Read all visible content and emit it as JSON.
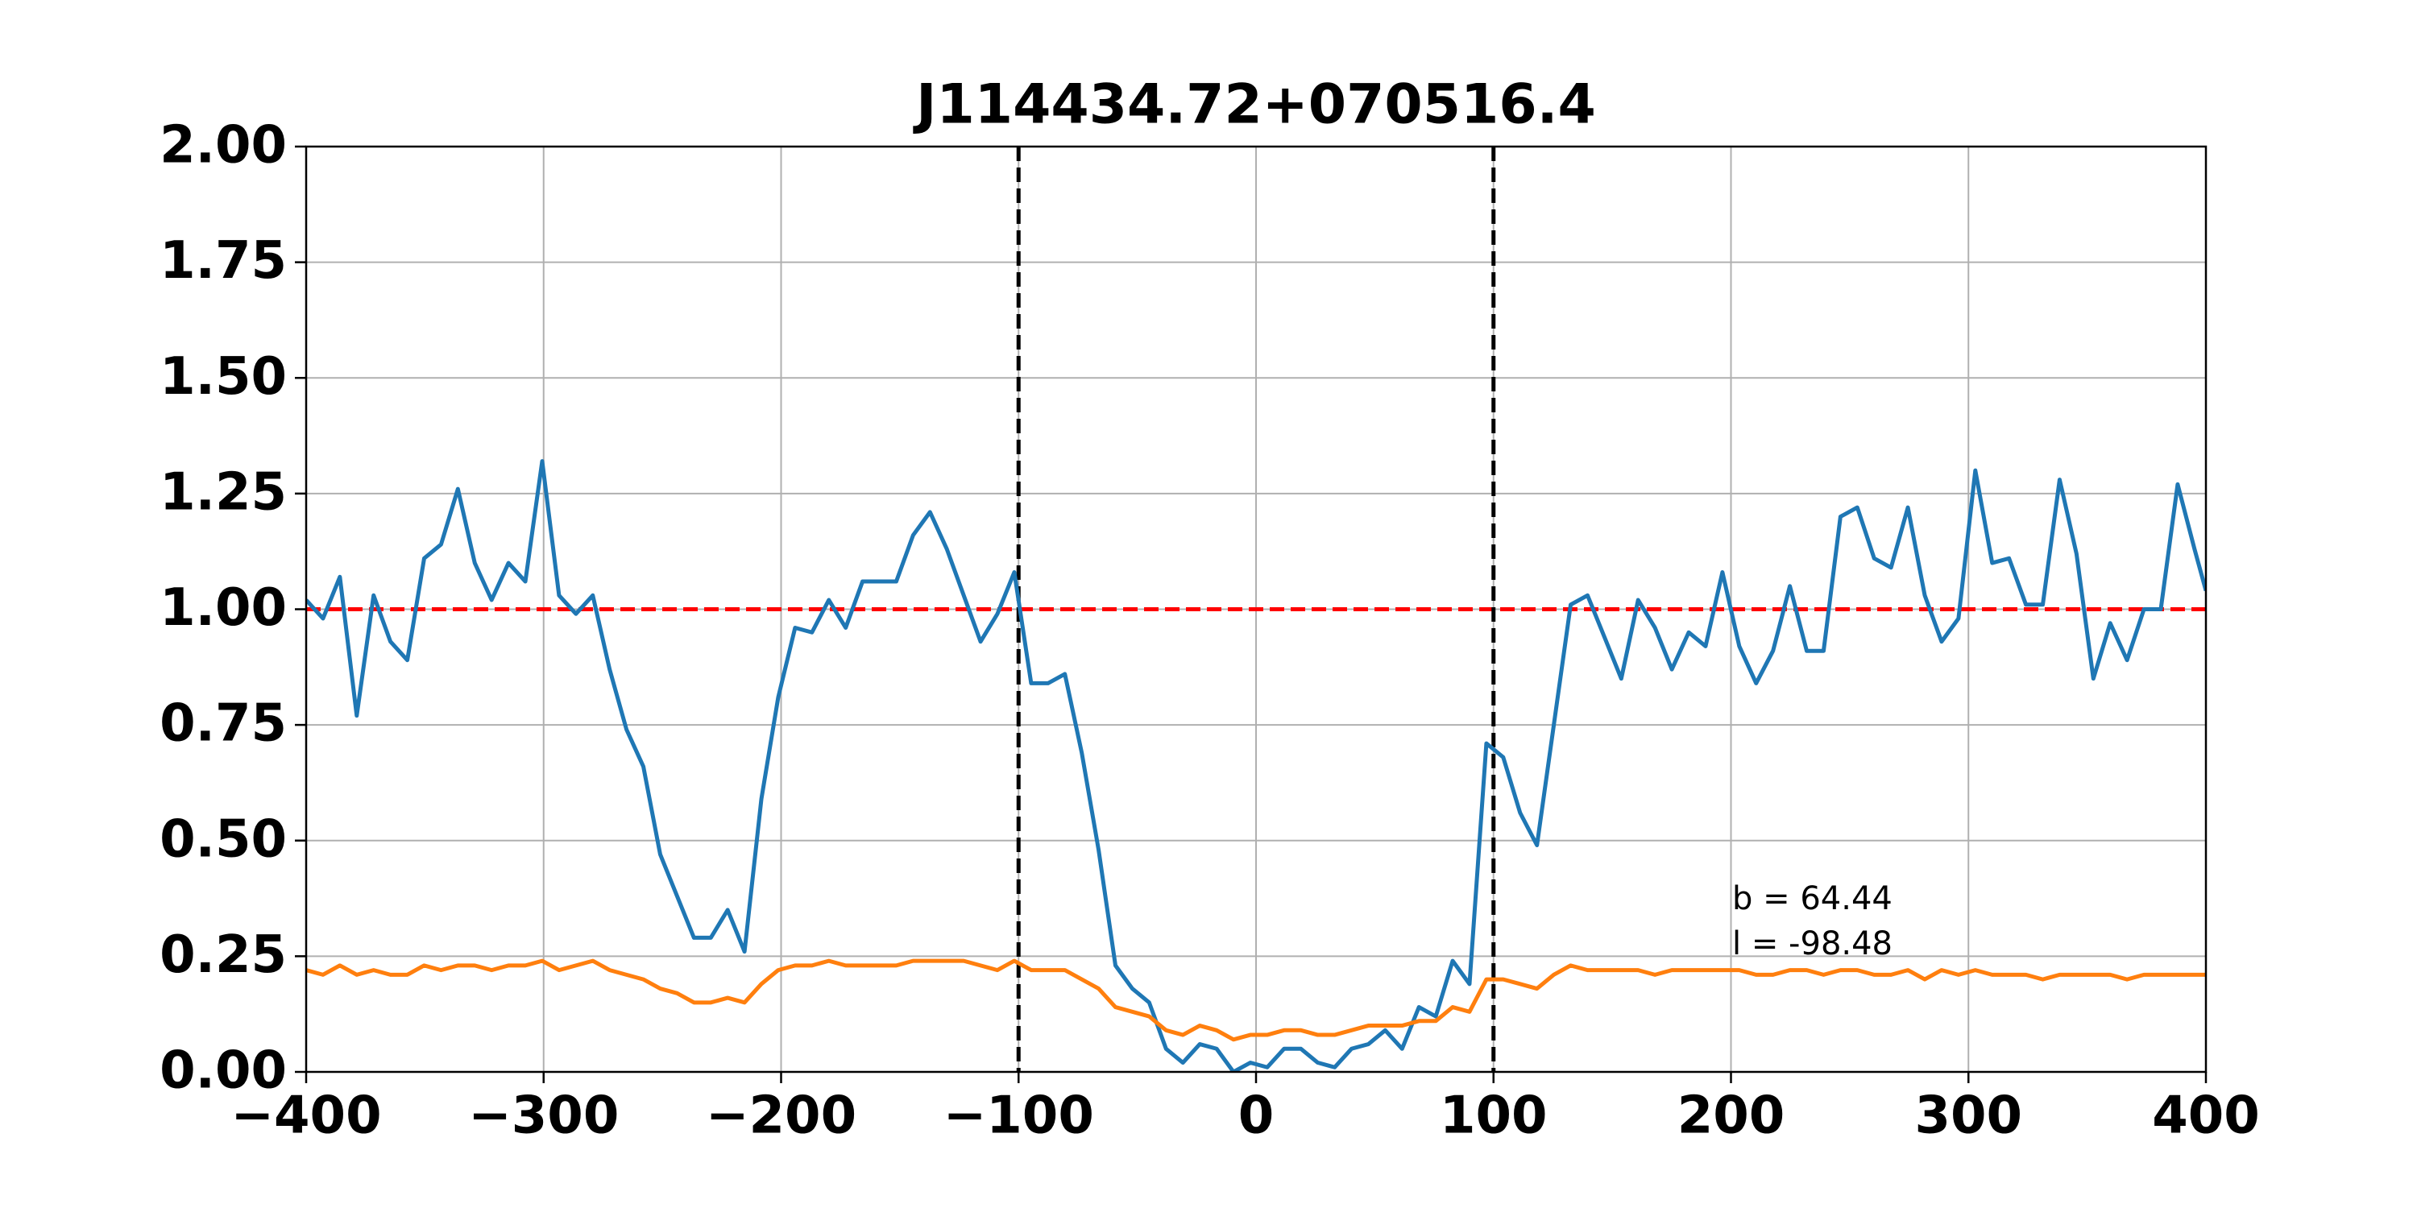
{
  "chart_data": {
    "type": "line",
    "title": "J114434.72+070516.4",
    "x": [
      -400,
      -392.9,
      -385.8,
      -378.7,
      -371.6,
      -364.5,
      -357.4,
      -350.3,
      -343.2,
      -336.1,
      -329,
      -321.9,
      -314.8,
      -307.7,
      -300.6,
      -293.5,
      -286.4,
      -279.3,
      -272.2,
      -265.1,
      -258,
      -250.9,
      -243.8,
      -236.7,
      -229.6,
      -222.5,
      -215.4,
      -208.3,
      -201.2,
      -194.1,
      -187,
      -179.9,
      -172.8,
      -165.7,
      -158.6,
      -151.5,
      -144.4,
      -137.3,
      -130.2,
      -123.1,
      -116,
      -108.9,
      -101.8,
      -94.7,
      -87.6,
      -80.5,
      -73.4,
      -66.3,
      -59.2,
      -52.1,
      -45,
      -37.9,
      -30.8,
      -23.7,
      -16.6,
      -9.5,
      -2.4,
      4.7,
      11.8,
      18.9,
      26,
      33.1,
      40.2,
      47.3,
      54.4,
      61.5,
      68.6,
      75.7,
      82.8,
      89.9,
      97,
      104.1,
      111.2,
      118.3,
      125.4,
      132.5,
      139.6,
      146.7,
      153.8,
      160.9,
      168,
      175.1,
      182.2,
      189.3,
      196.4,
      203.5,
      210.6,
      217.7,
      224.8,
      231.9,
      239,
      246.1,
      253.2,
      260.3,
      267.4,
      274.5,
      281.6,
      288.7,
      295.8,
      302.9,
      310,
      317.1,
      324.2,
      331.3,
      338.4,
      345.5,
      352.6,
      359.7,
      366.8,
      373.9,
      381,
      388.1,
      395.2,
      400
    ],
    "series": [
      {
        "color": "#1f77b4",
        "values": [
          1.02,
          0.98,
          1.07,
          0.77,
          1.03,
          0.93,
          0.89,
          1.11,
          1.14,
          1.26,
          1.1,
          1.02,
          1.1,
          1.06,
          1.32,
          1.03,
          0.99,
          1.03,
          0.87,
          0.74,
          0.66,
          0.47,
          0.38,
          0.29,
          0.29,
          0.35,
          0.26,
          0.59,
          0.81,
          0.96,
          0.95,
          1.02,
          0.96,
          1.06,
          1.06,
          1.06,
          1.16,
          1.21,
          1.13,
          1.03,
          0.93,
          0.99,
          1.08,
          0.84,
          0.84,
          0.86,
          0.69,
          0.48,
          0.23,
          0.18,
          0.15,
          0.05,
          0.02,
          0.06,
          0.05,
          0.0,
          0.02,
          0.01,
          0.05,
          0.05,
          0.02,
          0.01,
          0.05,
          0.06,
          0.09,
          0.05,
          0.14,
          0.12,
          0.24,
          0.19,
          0.71,
          0.68,
          0.56,
          0.49,
          0.75,
          1.01,
          1.03,
          0.94,
          0.85,
          1.02,
          0.96,
          0.87,
          0.95,
          0.92,
          1.08,
          0.92,
          0.84,
          0.91,
          1.05,
          0.91,
          0.91,
          1.2,
          1.22,
          1.11,
          1.09,
          1.22,
          1.03,
          0.93,
          0.98,
          1.3,
          1.1,
          1.11,
          1.01,
          1.01,
          1.28,
          1.12,
          0.85,
          0.97,
          0.89,
          1.0,
          1.0,
          1.27,
          1.13,
          1.04
        ]
      },
      {
        "color": "#ff7f0e",
        "values": [
          0.22,
          0.21,
          0.23,
          0.21,
          0.22,
          0.21,
          0.21,
          0.23,
          0.22,
          0.23,
          0.23,
          0.22,
          0.23,
          0.23,
          0.24,
          0.22,
          0.23,
          0.24,
          0.22,
          0.21,
          0.2,
          0.18,
          0.17,
          0.15,
          0.15,
          0.16,
          0.15,
          0.19,
          0.22,
          0.23,
          0.23,
          0.24,
          0.23,
          0.23,
          0.23,
          0.23,
          0.24,
          0.24,
          0.24,
          0.24,
          0.23,
          0.22,
          0.24,
          0.22,
          0.22,
          0.22,
          0.2,
          0.18,
          0.14,
          0.13,
          0.12,
          0.09,
          0.08,
          0.1,
          0.09,
          0.07,
          0.08,
          0.08,
          0.09,
          0.09,
          0.08,
          0.08,
          0.09,
          0.1,
          0.1,
          0.1,
          0.11,
          0.11,
          0.14,
          0.13,
          0.2,
          0.2,
          0.19,
          0.18,
          0.21,
          0.23,
          0.22,
          0.22,
          0.22,
          0.22,
          0.21,
          0.22,
          0.22,
          0.22,
          0.22,
          0.22,
          0.21,
          0.21,
          0.22,
          0.22,
          0.21,
          0.22,
          0.22,
          0.21,
          0.21,
          0.22,
          0.2,
          0.22,
          0.21,
          0.22,
          0.21,
          0.21,
          0.21,
          0.2,
          0.21,
          0.21,
          0.21,
          0.21,
          0.2,
          0.21,
          0.21,
          0.21,
          0.21,
          0.21
        ]
      }
    ],
    "xlim": [
      -400,
      400
    ],
    "ylim": [
      0,
      2
    ],
    "xticks": [
      {
        "value": -400,
        "label": "−400"
      },
      {
        "value": -300,
        "label": "−300"
      },
      {
        "value": -200,
        "label": "−200"
      },
      {
        "value": -100,
        "label": "−100"
      },
      0,
      100,
      200,
      300,
      400
    ],
    "yticks": [
      {
        "value": 0,
        "label": "0.00"
      },
      {
        "value": 0.25,
        "label": "0.25"
      },
      {
        "value": 0.5,
        "label": "0.50"
      },
      {
        "value": 0.75,
        "label": "0.75"
      },
      {
        "value": 1,
        "label": "1.00"
      },
      {
        "value": 1.25,
        "label": "1.25"
      },
      {
        "value": 1.5,
        "label": "1.50"
      },
      {
        "value": 1.75,
        "label": "1.75"
      },
      {
        "value": 2,
        "label": "2.00"
      }
    ],
    "grid": true,
    "vlines": {
      "values": [
        -100,
        100
      ],
      "color": "#000000"
    },
    "hlines": {
      "values": [
        1
      ],
      "color": "#ff0000"
    },
    "annotations": [
      "b = 64.44",
      "l = -98.48"
    ]
  }
}
